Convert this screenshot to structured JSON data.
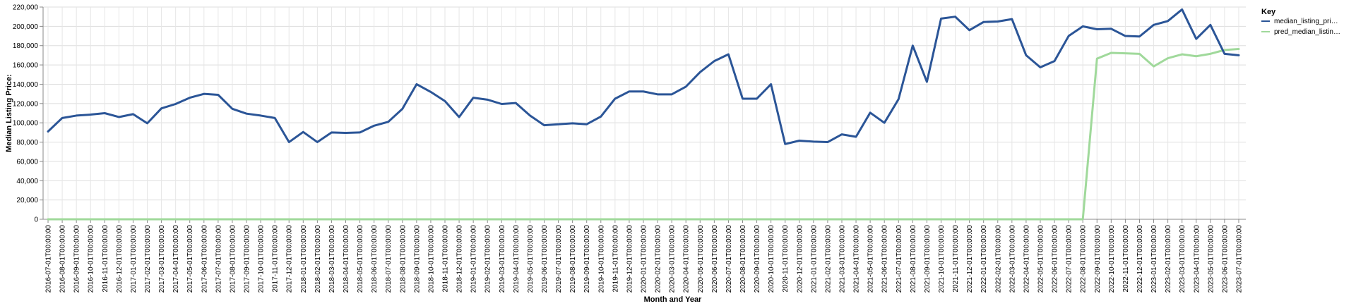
{
  "chart_data": {
    "type": "line",
    "xlabel": "Month and Year",
    "ylabel": "Median Listing Price:",
    "ylim": [
      0,
      220000
    ],
    "yticks": [
      "0",
      "20,000",
      "40,000",
      "60,000",
      "80,000",
      "100,000",
      "120,000",
      "140,000",
      "160,000",
      "180,000",
      "200,000",
      "220,000"
    ],
    "grid": true,
    "legend": {
      "title": "Key",
      "position": "top-right",
      "entries": [
        "median_listing_pri…",
        "pred_median_listin…"
      ]
    },
    "categories": [
      "2016-07-01T00:00:00",
      "2016-08-01T00:00:00",
      "2016-09-01T00:00:00",
      "2016-10-01T00:00:00",
      "2016-11-01T00:00:00",
      "2016-12-01T00:00:00",
      "2017-01-01T00:00:00",
      "2017-02-01T00:00:00",
      "2017-03-01T00:00:00",
      "2017-04-01T00:00:00",
      "2017-05-01T00:00:00",
      "2017-06-01T00:00:00",
      "2017-07-01T00:00:00",
      "2017-08-01T00:00:00",
      "2017-09-01T00:00:00",
      "2017-10-01T00:00:00",
      "2017-11-01T00:00:00",
      "2017-12-01T00:00:00",
      "2018-01-01T00:00:00",
      "2018-02-01T00:00:00",
      "2018-03-01T00:00:00",
      "2018-04-01T00:00:00",
      "2018-05-01T00:00:00",
      "2018-06-01T00:00:00",
      "2018-07-01T00:00:00",
      "2018-08-01T00:00:00",
      "2018-09-01T00:00:00",
      "2018-10-01T00:00:00",
      "2018-11-01T00:00:00",
      "2018-12-01T00:00:00",
      "2019-01-01T00:00:00",
      "2019-02-01T00:00:00",
      "2019-03-01T00:00:00",
      "2019-04-01T00:00:00",
      "2019-05-01T00:00:00",
      "2019-06-01T00:00:00",
      "2019-07-01T00:00:00",
      "2019-08-01T00:00:00",
      "2019-09-01T00:00:00",
      "2019-10-01T00:00:00",
      "2019-11-01T00:00:00",
      "2019-12-01T00:00:00",
      "2020-01-01T00:00:00",
      "2020-02-01T00:00:00",
      "2020-03-01T00:00:00",
      "2020-04-01T00:00:00",
      "2020-05-01T00:00:00",
      "2020-06-01T00:00:00",
      "2020-07-01T00:00:00",
      "2020-08-01T00:00:00",
      "2020-09-01T00:00:00",
      "2020-10-01T00:00:00",
      "2020-11-01T00:00:00",
      "2020-12-01T00:00:00",
      "2021-01-01T00:00:00",
      "2021-02-01T00:00:00",
      "2021-03-01T00:00:00",
      "2021-04-01T00:00:00",
      "2021-05-01T00:00:00",
      "2021-06-01T00:00:00",
      "2021-07-01T00:00:00",
      "2021-08-01T00:00:00",
      "2021-09-01T00:00:00",
      "2021-10-01T00:00:00",
      "2021-11-01T00:00:00",
      "2021-12-01T00:00:00",
      "2022-01-01T00:00:00",
      "2022-02-01T00:00:00",
      "2022-03-01T00:00:00",
      "2022-04-01T00:00:00",
      "2022-05-01T00:00:00",
      "2022-06-01T00:00:00",
      "2022-07-01T00:00:00",
      "2022-08-01T00:00:00",
      "2022-09-01T00:00:00",
      "2022-10-01T00:00:00",
      "2022-11-01T00:00:00",
      "2022-12-01T00:00:00",
      "2023-01-01T00:00:00",
      "2023-02-01T00:00:00",
      "2023-03-01T00:00:00",
      "2023-04-01T00:00:00",
      "2023-05-01T00:00:00",
      "2023-06-01T00:00:00",
      "2023-07-01T00:00:00"
    ],
    "series": [
      {
        "name": "median_listing_pri…",
        "color": "#2b5597",
        "values": [
          91000,
          105000,
          107500,
          108500,
          110000,
          106000,
          109000,
          99500,
          115000,
          119500,
          126000,
          130000,
          129000,
          114500,
          109500,
          107500,
          105000,
          80000,
          90500,
          80000,
          90000,
          89500,
          90000,
          97000,
          101000,
          114500,
          140000,
          132000,
          122500,
          106000,
          126000,
          124000,
          119500,
          120500,
          107500,
          97500,
          98500,
          99500,
          98500,
          106500,
          125000,
          132500,
          132500,
          129500,
          129500,
          137500,
          152500,
          164000,
          171000,
          125000,
          125000,
          140000,
          78000,
          81500,
          80500,
          80000,
          88000,
          85500,
          110500,
          100000,
          124500,
          180000,
          142500,
          208000,
          210000,
          196000,
          204500,
          205000,
          207500,
          170000,
          157500,
          164000,
          190000,
          200000,
          197000,
          197500,
          190000,
          189500,
          201500,
          205500,
          217500,
          187000,
          201500,
          171500,
          170000
        ]
      },
      {
        "name": "pred_median_listin…",
        "color": "#a0d99b",
        "values": [
          0,
          0,
          0,
          0,
          0,
          0,
          0,
          0,
          0,
          0,
          0,
          0,
          0,
          0,
          0,
          0,
          0,
          0,
          0,
          0,
          0,
          0,
          0,
          0,
          0,
          0,
          0,
          0,
          0,
          0,
          0,
          0,
          0,
          0,
          0,
          0,
          0,
          0,
          0,
          0,
          0,
          0,
          0,
          0,
          0,
          0,
          0,
          0,
          0,
          0,
          0,
          0,
          0,
          0,
          0,
          0,
          0,
          0,
          0,
          0,
          0,
          0,
          0,
          0,
          0,
          0,
          0,
          0,
          0,
          0,
          0,
          0,
          0,
          0,
          166500,
          172500,
          172000,
          171500,
          158500,
          167000,
          171000,
          169000,
          171500,
          175500,
          176500
        ]
      }
    ]
  }
}
